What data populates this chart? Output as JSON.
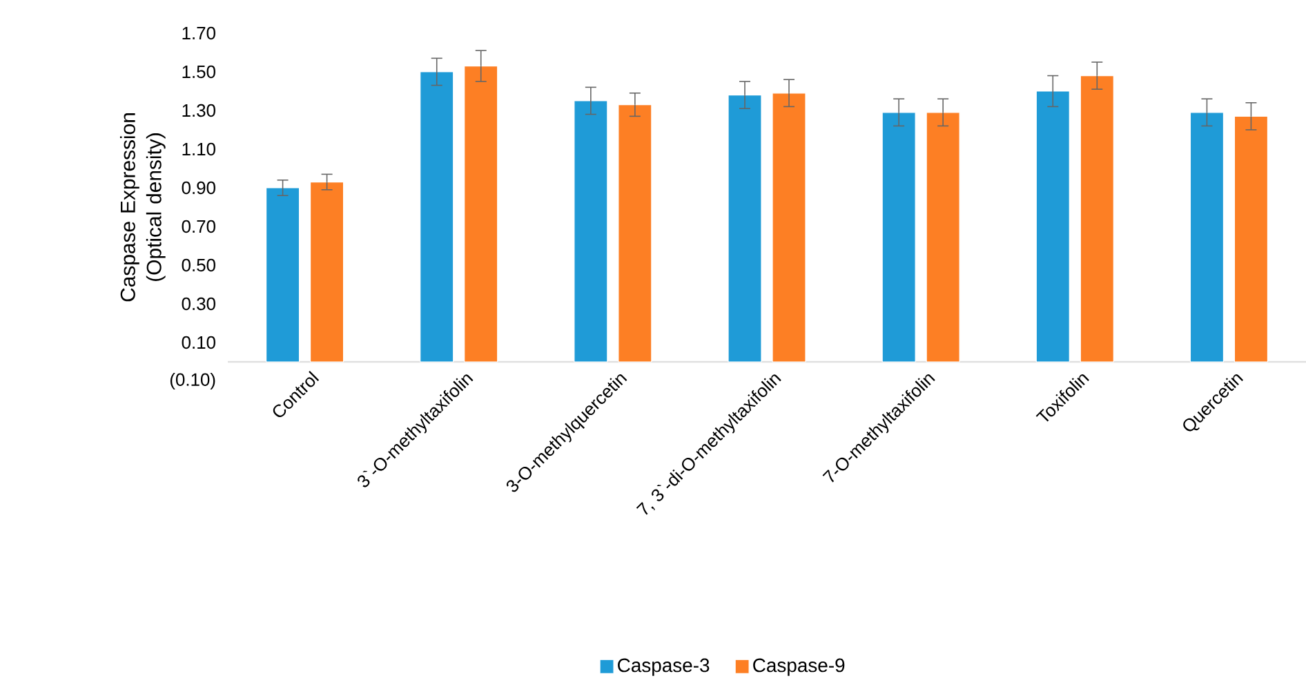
{
  "chart_data": {
    "type": "bar",
    "ylabel": "Caspase Expression (Optical density)",
    "categories": [
      "Control",
      "3`-O-methyltaxifolin",
      "3-O-methylquercetin",
      "7, 3`-di-O-methyltaxifolin",
      "7-O-methyltaxifolin",
      "Toxifolin",
      "Quercetin"
    ],
    "series": [
      {
        "name": "Caspase-3",
        "color": "#1f9bd7",
        "values": [
          0.9,
          1.5,
          1.35,
          1.38,
          1.29,
          1.4,
          1.29
        ],
        "errors": [
          0.04,
          0.07,
          0.07,
          0.07,
          0.07,
          0.08,
          0.07
        ]
      },
      {
        "name": "Caspase-9",
        "color": "#fd7f24",
        "values": [
          0.93,
          1.53,
          1.33,
          1.39,
          1.29,
          1.48,
          1.27
        ],
        "errors": [
          0.04,
          0.08,
          0.06,
          0.07,
          0.07,
          0.07,
          0.07
        ]
      }
    ],
    "ylim": [
      -0.1,
      1.7
    ],
    "yticks": [
      {
        "value": -0.1,
        "label": "(0.10)"
      },
      {
        "value": 0.1,
        "label": "0.10"
      },
      {
        "value": 0.3,
        "label": "0.30"
      },
      {
        "value": 0.5,
        "label": "0.50"
      },
      {
        "value": 0.7,
        "label": "0.70"
      },
      {
        "value": 0.9,
        "label": "0.90"
      },
      {
        "value": 1.1,
        "label": "1.10"
      },
      {
        "value": 1.3,
        "label": "1.30"
      },
      {
        "value": 1.5,
        "label": "1.50"
      },
      {
        "value": 1.7,
        "label": "1.70"
      }
    ],
    "grid": false,
    "legend": "bottom"
  }
}
